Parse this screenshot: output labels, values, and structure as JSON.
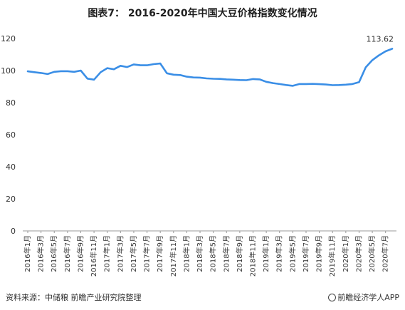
{
  "chart_data": {
    "type": "line",
    "title": "图表7： 2016-2020年中国大豆价格指数变化情况",
    "ylim": [
      0,
      120
    ],
    "yticks": [
      0,
      20,
      40,
      60,
      80,
      100,
      120
    ],
    "grid": false,
    "x": [
      "2016年1月",
      "2016年2月",
      "2016年3月",
      "2016年4月",
      "2016年5月",
      "2016年6月",
      "2016年7月",
      "2016年8月",
      "2016年9月",
      "2016年10月",
      "2016年11月",
      "2016年12月",
      "2017年1月",
      "2017年2月",
      "2017年3月",
      "2017年4月",
      "2017年5月",
      "2017年6月",
      "2017年7月",
      "2017年8月",
      "2017年9月",
      "2017年10月",
      "2017年11月",
      "2017年12月",
      "2018年1月",
      "2018年2月",
      "2018年3月",
      "2018年4月",
      "2018年5月",
      "2018年6月",
      "2018年7月",
      "2018年8月",
      "2018年9月",
      "2018年10月",
      "2018年11月",
      "2018年12月",
      "2019年1月",
      "2019年2月",
      "2019年3月",
      "2019年4月",
      "2019年5月",
      "2019年6月",
      "2019年7月",
      "2019年8月",
      "2019年9月",
      "2019年10月",
      "2019年11月",
      "2019年12月",
      "2020年1月",
      "2020年2月",
      "2020年3月",
      "2020年4月",
      "2020年5月",
      "2020年6月",
      "2020年7月",
      "2020年8月"
    ],
    "xticks_shown": [
      "2016年1月",
      "2016年3月",
      "2016年5月",
      "2016年7月",
      "2016年9月",
      "2016年11月",
      "2017年1月",
      "2017年3月",
      "2017年5月",
      "2017年7月",
      "2017年9月",
      "2017年11月",
      "2018年1月",
      "2018年3月",
      "2018年5月",
      "2018年7月",
      "2018年9月",
      "2018年11月",
      "2019年1月",
      "2019年3月",
      "2019年5月",
      "2019年7月",
      "2019年9月",
      "2019年11月",
      "2020年1月",
      "2020年3月",
      "2020年5月",
      "2020年7月"
    ],
    "series": [
      {
        "color": "#3a8ee6",
        "values": [
          99.5,
          99.0,
          98.5,
          97.8,
          99.2,
          99.6,
          99.6,
          99.2,
          100.0,
          95.0,
          94.3,
          99.0,
          101.5,
          100.8,
          103.0,
          102.2,
          103.8,
          103.3,
          103.3,
          104.0,
          104.4,
          98.3,
          97.4,
          97.2,
          96.2,
          95.7,
          95.6,
          95.1,
          94.9,
          94.8,
          94.5,
          94.3,
          94.1,
          94.0,
          94.7,
          94.5,
          93.0,
          92.2,
          91.6,
          91.0,
          90.5,
          91.6,
          91.6,
          91.7,
          91.5,
          91.3,
          90.9,
          91.0,
          91.2,
          91.6,
          92.8,
          102.0,
          106.5,
          109.5,
          112.0,
          113.62
        ]
      }
    ],
    "annotations": [
      {
        "label": "113.62",
        "x": "2020年8月",
        "y": 113.62
      }
    ]
  },
  "footer": {
    "source": "资料来源：中储粮  前瞻产业研究院整理",
    "brand": "前瞻经济学人APP"
  }
}
